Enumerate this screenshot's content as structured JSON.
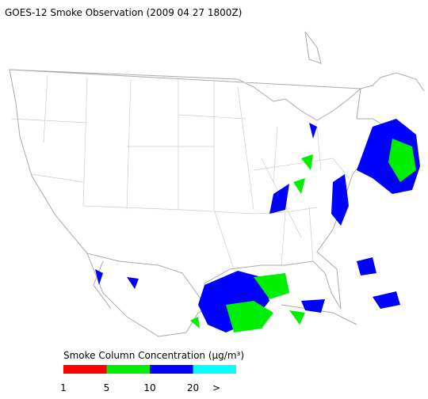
{
  "header": {
    "title": "GOES-12 Smoke Observation (2009 04 27  1800Z)"
  },
  "legend": {
    "title": "Smoke Column Concentration (μg/m³)",
    "colors": [
      "#ff0000",
      "#00ee00",
      "#0000ff",
      "#00ffff"
    ],
    "ticks": [
      1,
      5,
      10,
      20
    ],
    "overflow": ">"
  }
}
